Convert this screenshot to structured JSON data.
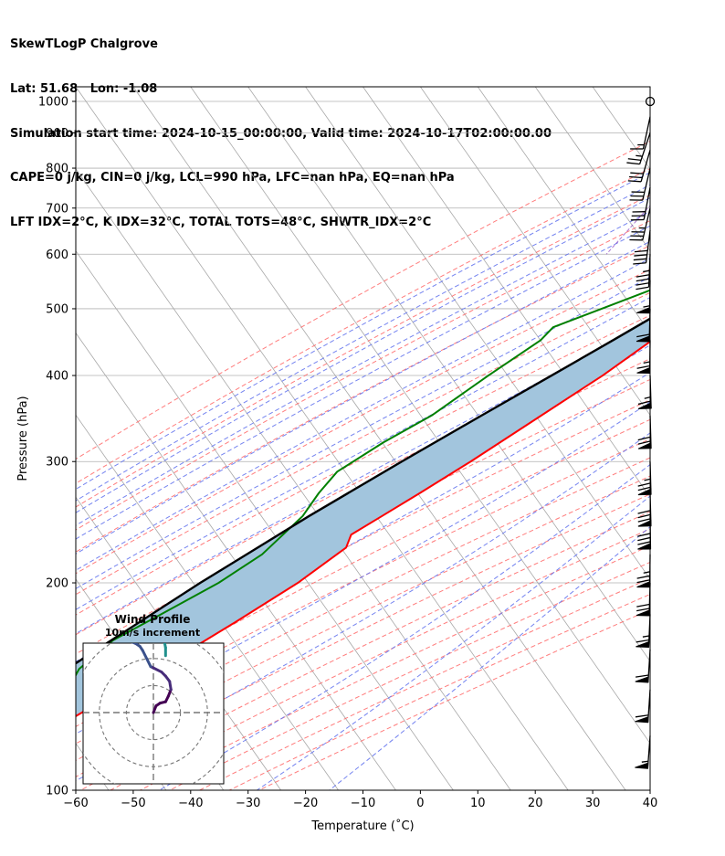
{
  "header": {
    "line1": "SkewTLogP Chalgrove",
    "line2": "Lat: 51.68   Lon: -1.08",
    "line3": "Simulation start time: 2024-10-15_00:00:00, Valid time: 2024-10-17T02:00:00.00",
    "line4": "CAPE=0 j/kg, CIN=0 j/kg, LCL=990 hPa, LFC=nan hPa, EQ=nan hPa",
    "line5": "LFT IDX=2°C, K IDX=32°C, TOTAL TOTS=48°C, SHWTR_IDX=2°C"
  },
  "colors": {
    "temperature": "#ff0000",
    "dewpoint": "#008000",
    "parcel": "#000000",
    "cape_cin_fill": "#a2c5dd",
    "dry_adiabat": "#ff6666",
    "moist_adiabat": "#6677ee",
    "mixing_ratio": "#8a3fbf",
    "isotherm": "#a8a8a8",
    "isobar": "#b0b0b0"
  },
  "chart_data": {
    "type": "skewt-logp",
    "xlabel": "Temperature ($^\\circ$C)",
    "ylabel": "Pressure (hPa)",
    "xlim": [
      -60,
      40
    ],
    "ylim": [
      1050,
      100
    ],
    "y_scale": "log",
    "x_ticks": [
      "−60",
      "−50",
      "−40",
      "−30",
      "−20",
      "−10",
      "0",
      "10",
      "20",
      "30",
      "40"
    ],
    "y_ticks": [
      "100",
      "200",
      "300",
      "400",
      "500",
      "600",
      "700",
      "800",
      "900",
      "1000"
    ],
    "grid": true,
    "temperature_profile": [
      {
        "p": 990,
        "t": 16.8
      },
      {
        "p": 950,
        "t": 15.5
      },
      {
        "p": 900,
        "t": 13.9
      },
      {
        "p": 850,
        "t": 12.2
      },
      {
        "p": 800,
        "t": 9.9
      },
      {
        "p": 750,
        "t": 6.3
      },
      {
        "p": 700,
        "t": 2.6
      },
      {
        "p": 650,
        "t": 0.0
      },
      {
        "p": 600,
        "t": -3.6
      },
      {
        "p": 550,
        "t": -6.5
      },
      {
        "p": 500,
        "t": -10.2
      },
      {
        "p": 450,
        "t": -14.5
      },
      {
        "p": 400,
        "t": -18.8
      },
      {
        "p": 350,
        "t": -24.6
      },
      {
        "p": 300,
        "t": -31.3
      },
      {
        "p": 270,
        "t": -36.3
      },
      {
        "p": 250,
        "t": -40.1
      },
      {
        "p": 235,
        "t": -43.2
      },
      {
        "p": 225,
        "t": -42.5
      },
      {
        "p": 200,
        "t": -46.6
      },
      {
        "p": 175,
        "t": -52.8
      },
      {
        "p": 150,
        "t": -60.4
      },
      {
        "p": 135,
        "t": -66.3
      },
      {
        "p": 125,
        "t": -70.3
      },
      {
        "p": 115,
        "t": -74.5
      },
      {
        "p": 108,
        "t": -77.1
      },
      {
        "p": 100,
        "t": -80.5
      }
    ],
    "dewpoint_profile": [
      {
        "p": 990,
        "t": 16.3
      },
      {
        "p": 960,
        "t": 15.7
      },
      {
        "p": 930,
        "t": 14.2
      },
      {
        "p": 900,
        "t": 12.6
      },
      {
        "p": 850,
        "t": 11.0
      },
      {
        "p": 800,
        "t": 8.3
      },
      {
        "p": 750,
        "t": 4.7
      },
      {
        "p": 700,
        "t": 0.5
      },
      {
        "p": 650,
        "t": -4.0
      },
      {
        "p": 600,
        "t": -10.8
      },
      {
        "p": 550,
        "t": -17.6
      },
      {
        "p": 500,
        "t": -27.1
      },
      {
        "p": 470,
        "t": -33.3
      },
      {
        "p": 450,
        "t": -33.9
      },
      {
        "p": 400,
        "t": -38.7
      },
      {
        "p": 350,
        "t": -43.7
      },
      {
        "p": 320,
        "t": -48.8
      },
      {
        "p": 290,
        "t": -53.3
      },
      {
        "p": 270,
        "t": -53.9
      },
      {
        "p": 250,
        "t": -53.9
      },
      {
        "p": 220,
        "t": -56.3
      },
      {
        "p": 200,
        "t": -60.4
      },
      {
        "p": 180,
        "t": -66.6
      },
      {
        "p": 165,
        "t": -71.8
      },
      {
        "p": 150,
        "t": -74.2
      },
      {
        "p": 125,
        "t": -72.7
      },
      {
        "p": 100,
        "t": -71.8
      }
    ],
    "parcel_profile": [
      {
        "p": 990,
        "t": 16.5
      },
      {
        "p": 950,
        "t": 14.7
      },
      {
        "p": 900,
        "t": 12.3
      },
      {
        "p": 850,
        "t": 9.9
      },
      {
        "p": 800,
        "t": 7.2
      },
      {
        "p": 750,
        "t": 4.3
      },
      {
        "p": 700,
        "t": 1.1
      },
      {
        "p": 650,
        "t": -2.4
      },
      {
        "p": 600,
        "t": -6.3
      },
      {
        "p": 550,
        "t": -10.7
      },
      {
        "p": 500,
        "t": -15.7
      },
      {
        "p": 450,
        "t": -21.3
      },
      {
        "p": 400,
        "t": -27.7
      },
      {
        "p": 350,
        "t": -35.0
      },
      {
        "p": 300,
        "t": -43.3
      },
      {
        "p": 250,
        "t": -52.8
      },
      {
        "p": 200,
        "t": -63.6
      },
      {
        "p": 150,
        "t": -76.3
      },
      {
        "p": 100,
        "t": -92.0
      }
    ],
    "wind_barbs": [
      {
        "p": 1000,
        "u": 0.0,
        "v": 0.0
      },
      {
        "p": 950,
        "u": 1.5,
        "v": 7.0
      },
      {
        "p": 900,
        "u": 4.0,
        "v": 12.0
      },
      {
        "p": 850,
        "u": 4.0,
        "v": 14.0
      },
      {
        "p": 800,
        "u": 3.5,
        "v": 15.0
      },
      {
        "p": 750,
        "u": 3.0,
        "v": 15.5
      },
      {
        "p": 700,
        "u": 4.0,
        "v": 17.0
      },
      {
        "p": 650,
        "u": 2.5,
        "v": 20.0
      },
      {
        "p": 600,
        "u": 1.0,
        "v": 24.0
      },
      {
        "p": 550,
        "u": 0.5,
        "v": 28.0
      },
      {
        "p": 500,
        "u": 0.8,
        "v": 31.0
      },
      {
        "p": 450,
        "u": 0.4,
        "v": 33.0
      },
      {
        "p": 400,
        "u": -1.0,
        "v": 33.0
      },
      {
        "p": 350,
        "u": -1.0,
        "v": 35.0
      },
      {
        "p": 300,
        "u": -1.0,
        "v": 38.0
      },
      {
        "p": 270,
        "u": -1.0,
        "v": 40.0
      },
      {
        "p": 250,
        "u": -0.5,
        "v": 41.0
      },
      {
        "p": 220,
        "u": 0.5,
        "v": 39.0
      },
      {
        "p": 200,
        "u": 1.0,
        "v": 36.0
      },
      {
        "p": 180,
        "u": 1.5,
        "v": 34.0
      },
      {
        "p": 160,
        "u": 2.0,
        "v": 32.0
      },
      {
        "p": 140,
        "u": 2.0,
        "v": 30.0
      },
      {
        "p": 120,
        "u": 2.0,
        "v": 27.0
      }
    ],
    "hodograph": {
      "title": "Wind Profile",
      "subtitle": "10m/s increment",
      "ring_step_ms": 10,
      "rings": 5,
      "range_ms": 50,
      "trace": [
        {
          "u": 0.0,
          "v": 0.0
        },
        {
          "u": 1.0,
          "v": 2.5
        },
        {
          "u": 2.5,
          "v": 3.5
        },
        {
          "u": 4.5,
          "v": 4.0
        },
        {
          "u": 5.5,
          "v": 6.0
        },
        {
          "u": 6.5,
          "v": 8.5
        },
        {
          "u": 6.0,
          "v": 11.5
        },
        {
          "u": 4.5,
          "v": 13.5
        },
        {
          "u": 3.0,
          "v": 15.0
        },
        {
          "u": -1.0,
          "v": 17.0
        },
        {
          "u": -4.0,
          "v": 23.0
        },
        {
          "u": -5.0,
          "v": 24.5
        },
        {
          "u": -6.5,
          "v": 25.5
        },
        {
          "u": -9.0,
          "v": 26.5
        },
        {
          "u": -9.5,
          "v": 28.0
        },
        {
          "u": -10.5,
          "v": 29.5
        },
        {
          "u": -11.5,
          "v": 31.0
        },
        {
          "u": -12.5,
          "v": 33.0
        },
        {
          "u": -13.0,
          "v": 35.0
        },
        {
          "u": -13.5,
          "v": 36.5
        },
        {
          "u": -14.0,
          "v": 38.0
        },
        {
          "u": -14.5,
          "v": 39.5
        },
        {
          "u": -15.0,
          "v": 40.5
        }
      ],
      "trace2": [
        {
          "u": 4.5,
          "v": 21.0
        },
        {
          "u": 4.5,
          "v": 24.0
        },
        {
          "u": 4.0,
          "v": 26.5
        },
        {
          "u": 4.2,
          "v": 29.0
        },
        {
          "u": 3.8,
          "v": 32.0
        },
        {
          "u": 3.5,
          "v": 36.0
        },
        {
          "u": 3.0,
          "v": 40.0
        },
        {
          "u": 2.5,
          "v": 45.0
        }
      ]
    }
  }
}
